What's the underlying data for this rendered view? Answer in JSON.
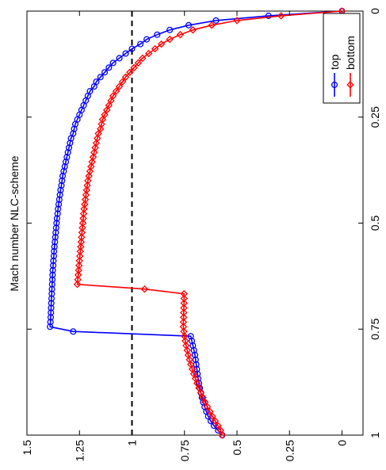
{
  "chart_data": {
    "type": "line",
    "title": "Mach number NLC-scheme",
    "x_ticks": [
      "0",
      "0.25",
      "0.5",
      "0.75",
      "1"
    ],
    "y_ticks": [
      "0",
      "0.25",
      "0.5",
      "0.75",
      "1",
      "1.25",
      "1.5"
    ],
    "xlim": [
      0,
      1
    ],
    "ylim": [
      -0.1,
      1.5
    ],
    "grid": false,
    "legend_position": "top-right",
    "reference_line": {
      "y": 1,
      "style": "dashed",
      "color": "#000000"
    },
    "series": [
      {
        "name": "top",
        "color": "#0000ff",
        "marker": "circle",
        "x": [
          0,
          0.0111,
          0.0222,
          0.0333,
          0.0444,
          0.0556,
          0.0667,
          0.0778,
          0.0889,
          0.1,
          0.1111,
          0.1222,
          0.1333,
          0.1444,
          0.1556,
          0.1667,
          0.1778,
          0.1889,
          0.2,
          0.2111,
          0.2222,
          0.2333,
          0.2444,
          0.2556,
          0.2667,
          0.2778,
          0.2889,
          0.3,
          0.3111,
          0.3222,
          0.3333,
          0.3444,
          0.3556,
          0.3667,
          0.3778,
          0.3889,
          0.4,
          0.4111,
          0.4222,
          0.4333,
          0.4444,
          0.4556,
          0.4667,
          0.4778,
          0.4889,
          0.5,
          0.5111,
          0.5222,
          0.5333,
          0.5444,
          0.5556,
          0.5667,
          0.5778,
          0.5889,
          0.6,
          0.6111,
          0.6222,
          0.6333,
          0.6444,
          0.6556,
          0.6667,
          0.6778,
          0.6889,
          0.7,
          0.7111,
          0.7222,
          0.7333,
          0.7444,
          0.7556,
          0.7667,
          0.7778,
          0.7889,
          0.8,
          0.8111,
          0.8222,
          0.8333,
          0.8444,
          0.8556,
          0.8667,
          0.8778,
          0.8889,
          0.9,
          0.9111,
          0.9222,
          0.9333,
          0.9444,
          0.9556,
          0.9667,
          0.9778,
          0.9889,
          1
        ],
        "y": [
          0,
          0.35,
          0.6,
          0.73,
          0.82,
          0.88,
          0.93,
          0.96,
          1.0,
          1.03,
          1.06,
          1.09,
          1.11,
          1.13,
          1.15,
          1.17,
          1.18,
          1.2,
          1.21,
          1.22,
          1.23,
          1.24,
          1.25,
          1.26,
          1.27,
          1.275,
          1.28,
          1.29,
          1.295,
          1.3,
          1.305,
          1.31,
          1.315,
          1.32,
          1.325,
          1.33,
          1.333,
          1.336,
          1.34,
          1.343,
          1.346,
          1.349,
          1.352,
          1.354,
          1.357,
          1.359,
          1.361,
          1.363,
          1.365,
          1.367,
          1.369,
          1.371,
          1.372,
          1.374,
          1.375,
          1.377,
          1.378,
          1.379,
          1.38,
          1.381,
          1.382,
          1.383,
          1.384,
          1.385,
          1.386,
          1.387,
          1.388,
          1.39,
          1.28,
          0.72,
          0.715,
          0.71,
          0.705,
          0.7,
          0.697,
          0.694,
          0.691,
          0.688,
          0.685,
          0.681,
          0.677,
          0.672,
          0.667,
          0.661,
          0.654,
          0.646,
          0.637,
          0.625,
          0.61,
          0.59,
          0.57
        ]
      },
      {
        "name": "bottom",
        "color": "#ff0000",
        "marker": "diamond",
        "x": [
          0,
          0.0111,
          0.0222,
          0.0333,
          0.0444,
          0.0556,
          0.0667,
          0.0778,
          0.0889,
          0.1,
          0.1111,
          0.1222,
          0.1333,
          0.1444,
          0.1556,
          0.1667,
          0.1778,
          0.1889,
          0.2,
          0.2111,
          0.2222,
          0.2333,
          0.2444,
          0.2556,
          0.2667,
          0.2778,
          0.2889,
          0.3,
          0.3111,
          0.3222,
          0.3333,
          0.3444,
          0.3556,
          0.3667,
          0.3778,
          0.3889,
          0.4,
          0.4111,
          0.4222,
          0.4333,
          0.4444,
          0.4556,
          0.4667,
          0.4778,
          0.4889,
          0.5,
          0.5111,
          0.5222,
          0.5333,
          0.5444,
          0.5556,
          0.5667,
          0.5778,
          0.5889,
          0.6,
          0.6111,
          0.6222,
          0.6333,
          0.6444,
          0.6556,
          0.6667,
          0.6778,
          0.6889,
          0.7,
          0.7111,
          0.7222,
          0.7333,
          0.7444,
          0.7556,
          0.7667,
          0.7778,
          0.7889,
          0.8,
          0.8111,
          0.8222,
          0.8333,
          0.8444,
          0.8556,
          0.8667,
          0.8778,
          0.8889,
          0.9,
          0.9111,
          0.9222,
          0.9333,
          0.9444,
          0.9556,
          0.9667,
          0.9778,
          0.9889,
          1
        ],
        "y": [
          0,
          0.29,
          0.5,
          0.62,
          0.71,
          0.77,
          0.82,
          0.86,
          0.89,
          0.92,
          0.95,
          0.97,
          0.99,
          1.01,
          1.03,
          1.045,
          1.06,
          1.075,
          1.09,
          1.1,
          1.11,
          1.12,
          1.13,
          1.14,
          1.145,
          1.15,
          1.16,
          1.165,
          1.17,
          1.175,
          1.18,
          1.185,
          1.19,
          1.195,
          1.2,
          1.205,
          1.21,
          1.213,
          1.216,
          1.219,
          1.222,
          1.225,
          1.228,
          1.23,
          1.232,
          1.234,
          1.236,
          1.238,
          1.24,
          1.242,
          1.244,
          1.246,
          1.248,
          1.25,
          1.252,
          1.254,
          1.256,
          1.258,
          1.26,
          0.94,
          0.752,
          0.752,
          0.752,
          0.753,
          0.754,
          0.754,
          0.755,
          0.755,
          0.753,
          0.75,
          0.746,
          0.742,
          0.737,
          0.732,
          0.726,
          0.72,
          0.713,
          0.706,
          0.698,
          0.69,
          0.681,
          0.672,
          0.662,
          0.652,
          0.641,
          0.629,
          0.617,
          0.604,
          0.59,
          0.578,
          0.57
        ]
      }
    ]
  }
}
